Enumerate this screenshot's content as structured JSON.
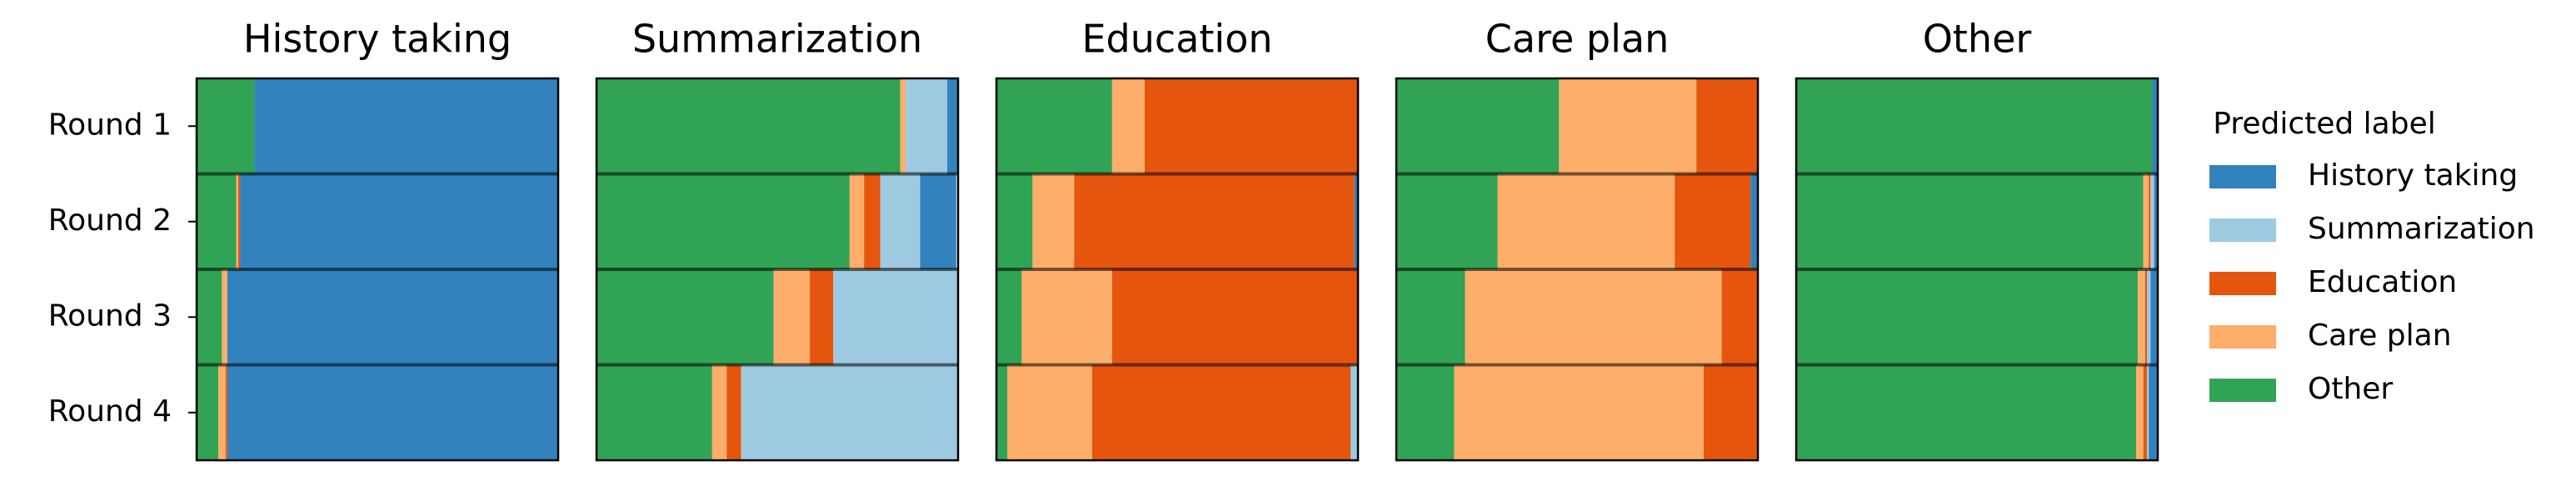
{
  "chart_data": [
    {
      "type": "bar",
      "orientation": "horizontal",
      "stacked": true,
      "title": "History taking",
      "categories": [
        "Round 1",
        "Round 2",
        "Round 3",
        "Round 4"
      ],
      "xlim": [
        0,
        1
      ],
      "legend": "right",
      "legend_title": "Predicted label",
      "series": [
        {
          "name": "History taking",
          "color": "#3182bd",
          "values": [
            0.84,
            0.88,
            0.915,
            0.915
          ]
        },
        {
          "name": "Summarization",
          "color": "#9ecae1",
          "values": [
            0,
            0,
            0,
            0
          ]
        },
        {
          "name": "Education",
          "color": "#e6550d",
          "values": [
            0,
            0.005,
            0,
            0.005
          ]
        },
        {
          "name": "Care plan",
          "color": "#fdae6b",
          "values": [
            0,
            0.005,
            0.015,
            0.02
          ]
        },
        {
          "name": "Other",
          "color": "#31a354",
          "values": [
            0.16,
            0.11,
            0.07,
            0.06
          ]
        }
      ]
    },
    {
      "type": "bar",
      "orientation": "horizontal",
      "stacked": true,
      "title": "Summarization",
      "xlim": [
        0,
        1
      ],
      "series": [
        {
          "values": [
            0.03,
            0.1,
            0,
            0
          ]
        },
        {
          "values": [
            0.115,
            0.11,
            0.345,
            0.6
          ]
        },
        {
          "values": [
            0,
            0.045,
            0.065,
            0.04
          ]
        },
        {
          "values": [
            0.015,
            0.04,
            0.1,
            0.04
          ]
        },
        {
          "values": [
            0.84,
            0.7,
            0.49,
            0.32
          ]
        }
      ]
    },
    {
      "type": "bar",
      "orientation": "horizontal",
      "stacked": true,
      "title": "Education",
      "xlim": [
        0,
        1
      ],
      "series": [
        {
          "values": [
            0,
            0.01,
            0,
            0
          ]
        },
        {
          "values": [
            0,
            0,
            0,
            0.02
          ]
        },
        {
          "values": [
            0.59,
            0.775,
            0.68,
            0.715
          ]
        },
        {
          "values": [
            0.09,
            0.115,
            0.25,
            0.235
          ]
        },
        {
          "values": [
            0.32,
            0.1,
            0.07,
            0.03
          ]
        }
      ]
    },
    {
      "type": "bar",
      "orientation": "horizontal",
      "stacked": true,
      "title": "Care plan",
      "xlim": [
        0,
        1
      ],
      "series": [
        {
          "values": [
            0,
            0.02,
            0,
            0
          ]
        },
        {
          "values": [
            0,
            0,
            0,
            0
          ]
        },
        {
          "values": [
            0.17,
            0.21,
            0.1,
            0.15
          ]
        },
        {
          "values": [
            0.38,
            0.49,
            0.71,
            0.69
          ]
        },
        {
          "values": [
            0.45,
            0.28,
            0.19,
            0.16
          ]
        }
      ]
    },
    {
      "type": "bar",
      "orientation": "horizontal",
      "stacked": true,
      "title": "Other",
      "xlim": [
        0,
        1
      ],
      "series": [
        {
          "values": [
            0.015,
            0.01,
            0.02,
            0.025
          ]
        },
        {
          "values": [
            0,
            0.01,
            0.01,
            0.005
          ]
        },
        {
          "values": [
            0,
            0.005,
            0.005,
            0.01
          ]
        },
        {
          "values": [
            0,
            0.015,
            0.02,
            0.02
          ]
        },
        {
          "values": [
            0.985,
            0.96,
            0.945,
            0.94
          ]
        }
      ]
    }
  ]
}
